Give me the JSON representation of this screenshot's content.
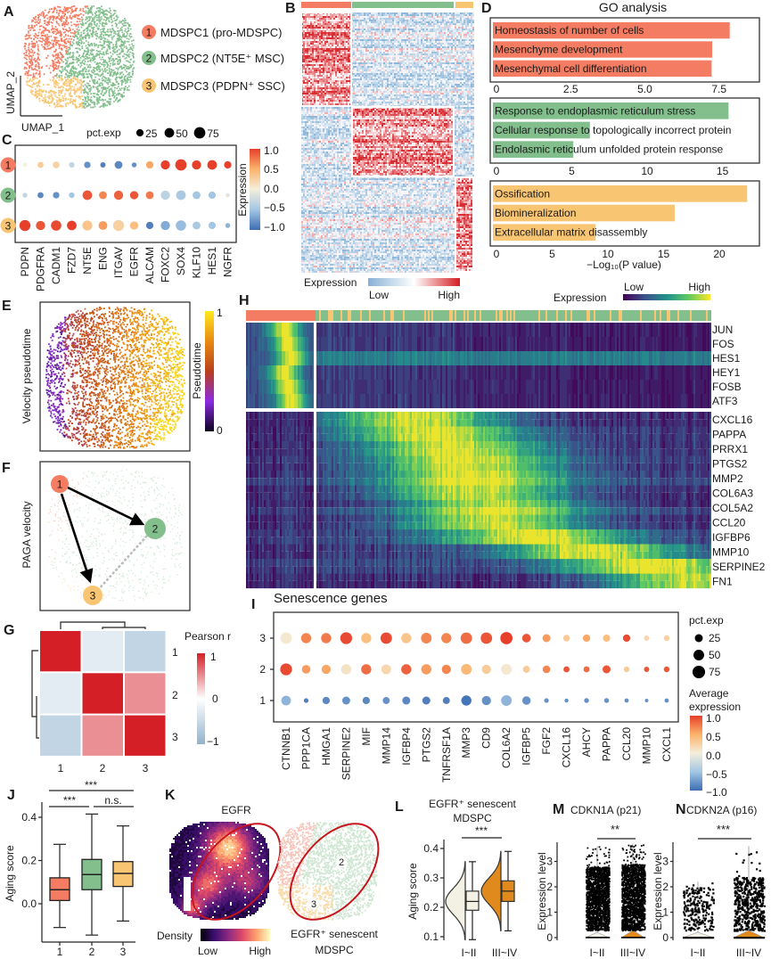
{
  "chart_data": [
    {
      "panel": "A",
      "type": "scatter",
      "xlabel": "UMAP_1",
      "ylabel": "UMAP_2",
      "clusters": [
        {
          "id": "1",
          "name": "MDSPC1 (pro-MDSPC)",
          "color": "#f47c62"
        },
        {
          "id": "2",
          "name": "MDSPC2 (NT5E⁺ MSC)",
          "color": "#82bf8c"
        },
        {
          "id": "3",
          "name": "MDSPC3 (PDPN⁺ SSC)",
          "color": "#f8c572"
        }
      ]
    },
    {
      "panel": "B",
      "type": "heatmap",
      "legend_title": "Expression",
      "low": "Low",
      "high": "High",
      "column_groups": [
        "1",
        "2",
        "3"
      ],
      "row_blocks": [
        "1",
        "2",
        "3"
      ]
    },
    {
      "panel": "C",
      "type": "dot",
      "size_title": "pct.exp",
      "size_levels": [
        "25",
        "50",
        "75"
      ],
      "size_values": [
        25,
        50,
        75
      ],
      "color_title": "Expression",
      "color_ticks": [
        "1.0",
        "0.5",
        "0.0",
        "−0.5",
        "−1.0"
      ],
      "genes": [
        "PDPN",
        "PDGFRA",
        "CADM1",
        "FZD7",
        "NT5E",
        "ENG",
        "ITGAV",
        "EGFR",
        "ALCAM",
        "FOXC2",
        "SOX4",
        "KLF10",
        "HES1",
        "NGFR"
      ],
      "rows": [
        {
          "cluster": "1",
          "expr": [
            0,
            0.3,
            0.25,
            -0.3,
            -0.8,
            -0.9,
            -0.85,
            -0.8,
            0.55,
            1,
            1,
            1,
            1,
            1
          ],
          "pct": [
            5,
            15,
            20,
            12,
            18,
            10,
            30,
            8,
            25,
            45,
            75,
            45,
            50,
            25
          ]
        },
        {
          "cluster": "2",
          "expr": [
            -0.3,
            -0.85,
            -0.8,
            -0.5,
            0.9,
            0.7,
            0.85,
            0.9,
            0.75,
            -0.35,
            -0.45,
            -0.5,
            -0.5,
            -0.1
          ],
          "pct": [
            8,
            15,
            18,
            12,
            50,
            30,
            45,
            35,
            30,
            45,
            50,
            30,
            25,
            5
          ]
        },
        {
          "cluster": "3",
          "expr": [
            1,
            0.9,
            0.95,
            1,
            0.35,
            0.6,
            0.25,
            0.4,
            -0.9,
            -0.65,
            -0.55,
            -0.45,
            -0.5,
            -0.6
          ],
          "pct": [
            70,
            45,
            60,
            50,
            55,
            40,
            70,
            35,
            25,
            45,
            60,
            30,
            25,
            8
          ]
        }
      ]
    },
    {
      "panel": "D",
      "type": "bar",
      "title": "GO analysis",
      "xlabel": "−Log₁₀(P value)",
      "groups": [
        {
          "color": "#f47c62",
          "xlim": [
            0,
            8.86
          ],
          "ticks": [
            "0",
            "2.5",
            "5.0",
            "7.5"
          ],
          "tick_values": [
            0,
            2.5,
            5,
            7.5
          ],
          "terms": [
            {
              "label": "Homeostasis of number of cells",
              "value": 7.86
            },
            {
              "label": "Mesenchyme development",
              "value": 7.27
            },
            {
              "label": "Mesenchymal cell differentiation",
              "value": 7.25
            }
          ]
        },
        {
          "color": "#82bf8c",
          "xlim": [
            0,
            17.45
          ],
          "ticks": [
            "0",
            "5",
            "10",
            "15"
          ],
          "tick_values": [
            0,
            5,
            10,
            15
          ],
          "terms": [
            {
              "label": "Response to endoplasmic reticulum stress",
              "value": 15.4
            },
            {
              "label": "Cellular response to topologically incorrect protein",
              "value": 6.2
            },
            {
              "label": "Endolasmic reticulum unfolded protein response",
              "value": 5.1
            }
          ]
        },
        {
          "color": "#f8c572",
          "xlim": [
            0,
            23.6
          ],
          "ticks": [
            "0",
            "5",
            "10",
            "15",
            "20"
          ],
          "tick_values": [
            0,
            5,
            10,
            15,
            20
          ],
          "terms": [
            {
              "label": "Ossification",
              "value": 22.5
            },
            {
              "label": "Biomineralization",
              "value": 16.0
            },
            {
              "label": "Extracellular matrix disassembly",
              "value": 8.9
            }
          ]
        }
      ]
    },
    {
      "panel": "E",
      "type": "scatter",
      "ylabel": "Velocity pseudotime",
      "legend_title": "Pseudotime",
      "max_label": "1",
      "min_label": "0",
      "range": [
        0,
        1
      ]
    },
    {
      "panel": "F",
      "type": "graph",
      "ylabel": "PAGA velocity",
      "nodes": [
        "1",
        "2",
        "3"
      ],
      "edges": [
        {
          "from": "1",
          "to": "2",
          "style": "arrow"
        },
        {
          "from": "1",
          "to": "3",
          "style": "arrow"
        },
        {
          "from": "2",
          "to": "3",
          "style": "dashed"
        }
      ]
    },
    {
      "panel": "G",
      "type": "heatmap",
      "title": "Pearson r",
      "labels": [
        "1",
        "2",
        "3"
      ],
      "matrix": [
        [
          1,
          -0.25,
          -0.55
        ],
        [
          -0.25,
          1,
          0.5
        ],
        [
          -0.55,
          0.5,
          1
        ]
      ],
      "ticks": [
        "1",
        "0",
        "−1"
      ]
    },
    {
      "panel": "H",
      "type": "heatmap",
      "legend_title": "Expression",
      "low": "Low",
      "high": "High",
      "genes_early": [
        "JUN",
        "FOS",
        "HES1",
        "HEY1",
        "FOSB",
        "ATF3"
      ],
      "genes_late": [
        "CXCL16",
        "PAPPA",
        "PRRX1",
        "PTGS2",
        "MMP2",
        "COL6A3",
        "COL5A2",
        "CCL20",
        "IGFBP6",
        "MMP10",
        "SERPINE2",
        "FN1"
      ],
      "late_peak_fraction": [
        0.25,
        0.3,
        0.35,
        0.38,
        0.4,
        0.4,
        0.45,
        0.45,
        0.55,
        0.7,
        0.85,
        0.95
      ]
    },
    {
      "panel": "I",
      "type": "dot",
      "title": "Senescence genes",
      "size_title": "pct.exp",
      "size_levels": [
        "25",
        "50",
        "75"
      ],
      "size_values": [
        25,
        50,
        75
      ],
      "color_title": [
        "Average",
        "expression"
      ],
      "color_ticks": [
        "1.0",
        "0.5",
        "0.0",
        "−0.5",
        "−1.0"
      ],
      "genes": [
        "CTNNB1",
        "PPP1CA",
        "HMGA1",
        "SERPINE2",
        "MIF",
        "MMP14",
        "IGFBP4",
        "PTGS2",
        "TNFRSF1A",
        "MMP3",
        "CD9",
        "COL6A2",
        "IGFBP5",
        "FGF2",
        "CXCL16",
        "AHCY",
        "PAPPA",
        "CCL20",
        "MMP10",
        "CXCL1"
      ],
      "rows": [
        {
          "cluster": "3",
          "expr": [
            0.05,
            0.7,
            0.75,
            0.95,
            0.4,
            0.95,
            0.35,
            0.7,
            0.7,
            0.8,
            0.9,
            1,
            0.9,
            0.6,
            0.3,
            0.55,
            0.4,
            0.95,
            0.2,
            0.25
          ],
          "pct": [
            60,
            45,
            45,
            65,
            45,
            60,
            45,
            50,
            45,
            60,
            60,
            70,
            30,
            25,
            15,
            20,
            20,
            20,
            8,
            10
          ]
        },
        {
          "cluster": "2",
          "expr": [
            0.95,
            0.6,
            0.55,
            0.1,
            0.8,
            0.2,
            0.85,
            0.6,
            0.7,
            0.45,
            0.3,
            0.05,
            0.3,
            0.7,
            0.9,
            0.8,
            0.9,
            0.3,
            0.9,
            0.9
          ],
          "pct": [
            65,
            30,
            35,
            45,
            45,
            40,
            45,
            45,
            35,
            50,
            35,
            50,
            18,
            22,
            12,
            12,
            25,
            10,
            8,
            10
          ]
        },
        {
          "cluster": "1",
          "expr": [
            -0.6,
            -0.9,
            -0.85,
            -0.8,
            -0.85,
            -0.8,
            -0.85,
            -0.9,
            -0.9,
            -0.95,
            -0.8,
            -0.6,
            -0.8,
            -0.8,
            -0.8,
            -0.8,
            -0.8,
            -0.8,
            -0.8,
            -0.8
          ],
          "pct": [
            40,
            5,
            20,
            25,
            20,
            18,
            25,
            25,
            18,
            45,
            35,
            50,
            28,
            5,
            3,
            6,
            6,
            4,
            2,
            4
          ]
        }
      ]
    },
    {
      "panel": "J",
      "type": "box",
      "ylabel": "Aging score",
      "yticks": [
        "0.4",
        "0.2",
        "0.0"
      ],
      "ytick_values": [
        0.4,
        0.2,
        0.0
      ],
      "categories": [
        "1",
        "2",
        "3"
      ],
      "boxes": [
        {
          "min": -0.11,
          "q1": 0.015,
          "median": 0.065,
          "q3": 0.12,
          "max": 0.275
        },
        {
          "min": -0.145,
          "q1": 0.065,
          "median": 0.135,
          "q3": 0.205,
          "max": 0.415
        },
        {
          "min": -0.08,
          "q1": 0.08,
          "median": 0.14,
          "q3": 0.195,
          "max": 0.36
        }
      ],
      "significance": [
        {
          "from": 0,
          "to": 2,
          "label": "***"
        },
        {
          "from": 0,
          "to": 1,
          "label": "***"
        },
        {
          "from": 1,
          "to": 2,
          "label": "n.s."
        }
      ]
    },
    {
      "panel": "K",
      "type": "density",
      "title": "EGFR",
      "density_label": "Density",
      "low": "Low",
      "high": "High",
      "caption": [
        "EGFR⁺ senescent",
        "MDSPC"
      ],
      "cluster_labels": [
        "2",
        "3"
      ]
    },
    {
      "panel": "L",
      "type": "violin",
      "title": [
        "EGFR⁺ senescent",
        "MDSPC"
      ],
      "ylabel": "Aging score",
      "yticks": [
        "0.4",
        "0.3",
        "0.2",
        "0.1"
      ],
      "ytick_values": [
        0.4,
        0.3,
        0.2,
        0.1
      ],
      "categories": [
        "I~II",
        "III~IV"
      ],
      "significance": "***",
      "groups": [
        {
          "min": 0.09,
          "q1": 0.19,
          "median": 0.22,
          "q3": 0.255,
          "max": 0.355,
          "color": "#f3f1e4"
        },
        {
          "min": 0.12,
          "q1": 0.22,
          "median": 0.255,
          "q3": 0.29,
          "max": 0.39,
          "color": "#e08a1e"
        }
      ]
    },
    {
      "panel": "M",
      "type": "scatter",
      "title": "CDKN1A (p21)",
      "ylabel": "Expression level",
      "yticks": [
        "0",
        "1",
        "2",
        "3"
      ],
      "ytick_values": [
        0,
        1,
        2,
        3
      ],
      "categories": [
        "I~II",
        "III~IV"
      ],
      "significance": "**"
    },
    {
      "panel": "N",
      "type": "scatter",
      "title": "CDKN2A (p16)",
      "ylabel": "Expression level",
      "yticks": [
        "0",
        "1",
        "2",
        "3"
      ],
      "ytick_values": [
        0,
        1,
        2,
        3
      ],
      "categories": [
        "I~II",
        "III~IV"
      ],
      "significance": "***"
    }
  ]
}
